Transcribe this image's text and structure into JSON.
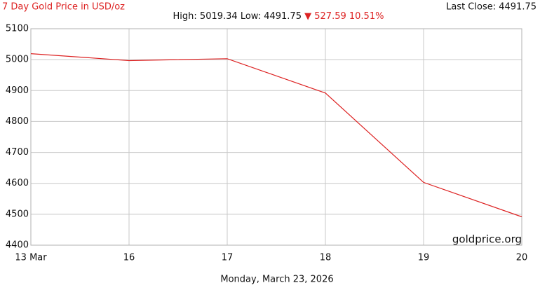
{
  "chart_data": {
    "type": "line",
    "title": "7 Day Gold Price in USD/oz",
    "summary": "High: 5019.34 Low: 4491.75",
    "change": "▼ 527.59 10.51%",
    "last_close": "Last Close: 4491.75",
    "watermark": "goldprice.org",
    "x_label": "Monday, March 23, 2026",
    "categories": [
      "13 Mar",
      "16",
      "17",
      "18",
      "19",
      "20"
    ],
    "series": [
      {
        "name": "Gold",
        "color": "#dd2222",
        "values": [
          5019.34,
          4997,
          5003,
          4892,
          4603,
          4491.75
        ]
      }
    ],
    "ylim": [
      4400,
      5100
    ],
    "yticks": [
      4400,
      4500,
      4600,
      4700,
      4800,
      4900,
      5000,
      5100
    ],
    "grid": true
  }
}
